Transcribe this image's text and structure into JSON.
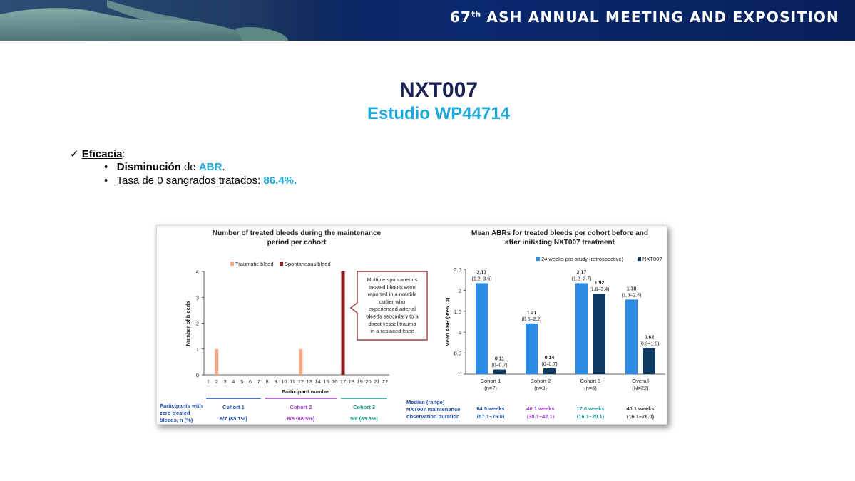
{
  "header": {
    "meeting_number": "67",
    "meeting_suffix": "th",
    "meeting_title": "ASH ANNUAL MEETING AND EXPOSITION"
  },
  "slide": {
    "title": "NXT007",
    "subtitle": "Estudio WP44714",
    "bullets": {
      "check": "✓",
      "bullet_dot": "•",
      "efficacy_label": "Eficacia",
      "efficacy_colon": ":",
      "item1_bold": "Disminución",
      "item1_mid": " de ",
      "item1_cyan": "ABR",
      "item1_end": ".",
      "item2_label": "Tasa de 0 sangrados tratados",
      "item2_colon": ": ",
      "item2_value": "86.4%."
    }
  },
  "colors": {
    "traumatic": "#f2a884",
    "spontaneous": "#8b1a1a",
    "prestudy": "#2f8ce6",
    "nxt007": "#0f3b63",
    "cohort1": "#1f4fa8",
    "cohort2": "#a03ecb",
    "cohort3": "#199a8f",
    "title_navy": "#1c2156",
    "accent_cyan": "#1fa8d8"
  },
  "chart_data": [
    {
      "type": "bar",
      "title_line1": "Number of treated bleeds during the maintenance",
      "title_line2": "period per cohort",
      "xlabel": "Participant number",
      "ylabel": "Number of bleeds",
      "ylim": [
        0,
        4
      ],
      "yticks": [
        "0",
        "1",
        "2",
        "3",
        "4"
      ],
      "categories": [
        "1",
        "2",
        "3",
        "4",
        "5",
        "6",
        "7",
        "8",
        "9",
        "10",
        "11",
        "12",
        "13",
        "14",
        "15",
        "16",
        "17",
        "18",
        "19",
        "20",
        "21",
        "22"
      ],
      "legend": [
        "Traumatic bleed",
        "Spontaneous bleed"
      ],
      "series": [
        {
          "name": "Traumatic bleed",
          "values": [
            0,
            1,
            0,
            0,
            0,
            0,
            0,
            0,
            0,
            0,
            0,
            1,
            0,
            0,
            0,
            0,
            0,
            0,
            0,
            0,
            0,
            0
          ]
        },
        {
          "name": "Spontaneous bleed",
          "values": [
            0,
            0,
            0,
            0,
            0,
            0,
            0,
            0,
            0,
            0,
            0,
            0,
            0,
            0,
            0,
            0,
            4,
            0,
            0,
            0,
            0,
            0
          ]
        }
      ],
      "annotation": [
        "Multiple spontaneous",
        "treated bleeds were",
        "reported in a notable",
        "outlier who",
        "experienced arterial",
        "bleeds secondary to a",
        "direct vessel trauma",
        "in a replaced knee"
      ],
      "row_label": [
        "Participants with",
        "zero treated",
        "bleeds, n (%)"
      ],
      "cohorts": [
        {
          "name": "Cohort 1",
          "zero_bleeds": "6/7 (85.7%)"
        },
        {
          "name": "Cohort 2",
          "zero_bleeds": "8/9 (88.9%)"
        },
        {
          "name": "Cohort 3",
          "zero_bleeds": "5/6 (83.3%)"
        }
      ]
    },
    {
      "type": "bar",
      "title_line1": "Mean ABRs for treated bleeds per cohort before and",
      "title_line2": "after initiating NXT007 treatment",
      "ylabel": "Mean ABR (95% CI)",
      "ylim": [
        0,
        2.5
      ],
      "yticks": [
        "0",
        "0.5",
        "1",
        "1.5",
        "2",
        "2.5"
      ],
      "legend": [
        "24 weeks pre-study (retrospective)",
        "NXT007"
      ],
      "categories": [
        "Cohort 1",
        "Cohort 2",
        "Cohort 3",
        "Overall"
      ],
      "category_n": [
        "(n=7)",
        "(n=9)",
        "(n=6)",
        "(N=22)"
      ],
      "series": [
        {
          "name": "24 weeks pre-study (retrospective)",
          "values": [
            2.17,
            1.21,
            2.17,
            1.78
          ],
          "labels": [
            "2.17",
            "1.21",
            "2.17",
            "1.78"
          ],
          "ci": [
            "(1.2–3.6)",
            "(0.6–2.2)",
            "(1.2–3.7)",
            "(1.3–2.4)"
          ]
        },
        {
          "name": "NXT007",
          "values": [
            0.11,
            0.14,
            1.92,
            0.62
          ],
          "labels": [
            "0.11",
            "0.14",
            "1.92",
            "0.62"
          ],
          "ci": [
            "(0–0.7)",
            "(0–0.7)",
            "(1.0–3.4)",
            "(0.3–1.0)"
          ]
        }
      ],
      "row_label": [
        "Median (range)",
        "NXT007 maintenance",
        "observation duration"
      ],
      "durations": [
        {
          "weeks": "64.9 weeks",
          "range": "(57.1–76.0)"
        },
        {
          "weeks": "40.1 weeks",
          "range": "(38.1–42.1)"
        },
        {
          "weeks": "17.6 weeks",
          "range": "(16.1–20.1)"
        },
        {
          "weeks": "40.1 weeks",
          "range": "(16.1–76.0)"
        }
      ]
    }
  ]
}
